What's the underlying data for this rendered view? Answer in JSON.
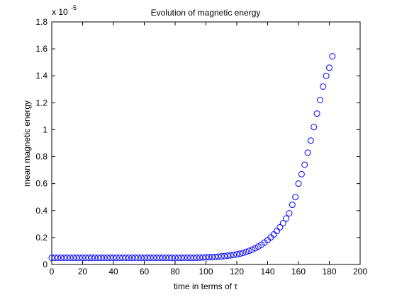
{
  "chart_data": {
    "type": "scatter",
    "title": "Evolution of magnetic energy",
    "xlabel": "time in terms of τ",
    "ylabel": "mean magnetic energy",
    "exponent_label": {
      "base": "x 10",
      "exp": "-5"
    },
    "xlim": [
      0,
      200
    ],
    "ylim": [
      0,
      1.8
    ],
    "xticks": [
      "0",
      "20",
      "40",
      "60",
      "80",
      "100",
      "120",
      "140",
      "160",
      "180",
      "200"
    ],
    "yticks": [
      "0",
      "0.2",
      "0.4",
      "0.6",
      "0.8",
      "1",
      "1.2",
      "1.4",
      "1.6",
      "1.8"
    ],
    "marker": "circle-open",
    "color": "#0000ff",
    "series": [
      {
        "x": [
          0,
          2,
          4,
          6,
          8,
          10,
          12,
          14,
          16,
          18,
          20,
          22,
          24,
          26,
          28,
          30,
          32,
          34,
          36,
          38,
          40,
          42,
          44,
          46,
          48,
          50,
          52,
          54,
          56,
          58,
          60,
          62,
          64,
          66,
          68,
          70,
          72,
          74,
          76,
          78,
          80,
          82,
          84,
          86,
          88,
          90,
          92,
          94,
          96,
          98,
          100,
          102,
          104,
          106,
          108,
          110,
          112,
          114,
          116,
          118,
          120,
          122,
          124,
          126,
          128,
          130,
          132,
          134,
          136,
          138,
          140,
          142,
          144,
          146,
          148,
          150,
          152,
          154,
          156,
          158,
          160,
          162,
          164,
          166,
          168,
          170,
          172,
          174,
          176,
          178,
          180,
          182
        ],
        "y": [
          0.05,
          0.05,
          0.05,
          0.05,
          0.05,
          0.05,
          0.05,
          0.05,
          0.05,
          0.05,
          0.05,
          0.05,
          0.05,
          0.05,
          0.05,
          0.05,
          0.05,
          0.05,
          0.05,
          0.05,
          0.05,
          0.05,
          0.05,
          0.05,
          0.05,
          0.05,
          0.05,
          0.05,
          0.05,
          0.05,
          0.05,
          0.05,
          0.05,
          0.05,
          0.05,
          0.05,
          0.05,
          0.05,
          0.05,
          0.05,
          0.05,
          0.05,
          0.05,
          0.05,
          0.05,
          0.05,
          0.05,
          0.05,
          0.051,
          0.052,
          0.053,
          0.054,
          0.055,
          0.056,
          0.058,
          0.06,
          0.062,
          0.065,
          0.068,
          0.071,
          0.075,
          0.08,
          0.086,
          0.093,
          0.101,
          0.11,
          0.121,
          0.133,
          0.147,
          0.163,
          0.181,
          0.201,
          0.223,
          0.248,
          0.276,
          0.307,
          0.341,
          0.38,
          0.443,
          0.5,
          0.6,
          0.67,
          0.74,
          0.83,
          0.92,
          1.02,
          1.12,
          1.22,
          1.32,
          1.4,
          1.46,
          1.545
        ]
      }
    ]
  }
}
